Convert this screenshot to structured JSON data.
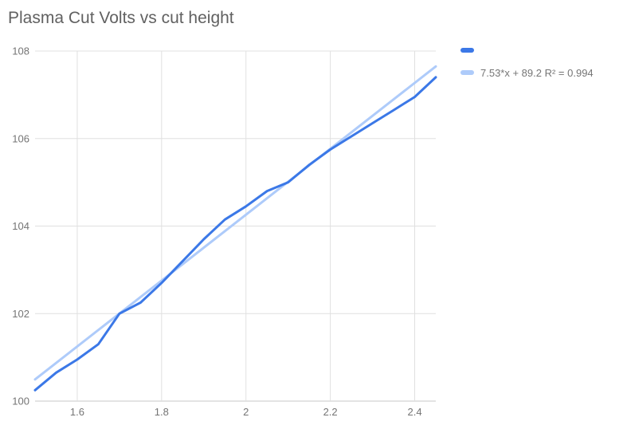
{
  "title": "Plasma Cut Volts vs cut height",
  "colors": {
    "series_line": "#3b78e7",
    "trend_line": "#aecbfa",
    "gridline": "#e0e0e0",
    "axis_line": "#c7c7c7",
    "title_text": "#616161",
    "tick_text": "#757575",
    "legend_text": "#757575",
    "background": "#ffffff"
  },
  "legend": {
    "position": "top-right",
    "items": [
      {
        "label": "",
        "color": "#3b78e7"
      },
      {
        "label": "7.53*x + 89.2 R² = 0.994",
        "color": "#aecbfa"
      }
    ]
  },
  "chart_data": {
    "type": "line",
    "title": "Plasma Cut Volts vs cut height",
    "xlabel": "",
    "ylabel": "",
    "xlim": [
      1.5,
      2.45
    ],
    "ylim": [
      100,
      108
    ],
    "x_ticks": [
      1.6,
      1.8,
      2,
      2.2,
      2.4
    ],
    "x_tick_labels": [
      "1.6",
      "1.8",
      "2",
      "2.2",
      "2.4"
    ],
    "y_ticks": [
      100,
      102,
      104,
      106,
      108
    ],
    "y_tick_labels": [
      "100",
      "102",
      "104",
      "106",
      "108"
    ],
    "grid": true,
    "legend_position": "top-right",
    "x": [
      1.5,
      1.55,
      1.6,
      1.65,
      1.7,
      1.75,
      1.8,
      1.85,
      1.9,
      1.95,
      2.0,
      2.05,
      2.1,
      2.15,
      2.2,
      2.25,
      2.3,
      2.35,
      2.4,
      2.45
    ],
    "series": [
      {
        "name": "",
        "type": "line",
        "color": "#3b78e7",
        "values": [
          100.25,
          100.65,
          100.95,
          101.3,
          102.0,
          102.25,
          102.7,
          103.2,
          103.7,
          104.15,
          104.45,
          104.8,
          105.0,
          105.4,
          105.75,
          106.05,
          106.35,
          106.65,
          106.95,
          107.4
        ]
      },
      {
        "name": "7.53*x + 89.2 R² = 0.994",
        "type": "trendline",
        "color": "#aecbfa",
        "slope": 7.53,
        "intercept": 89.2,
        "r2": 0.994
      }
    ]
  }
}
